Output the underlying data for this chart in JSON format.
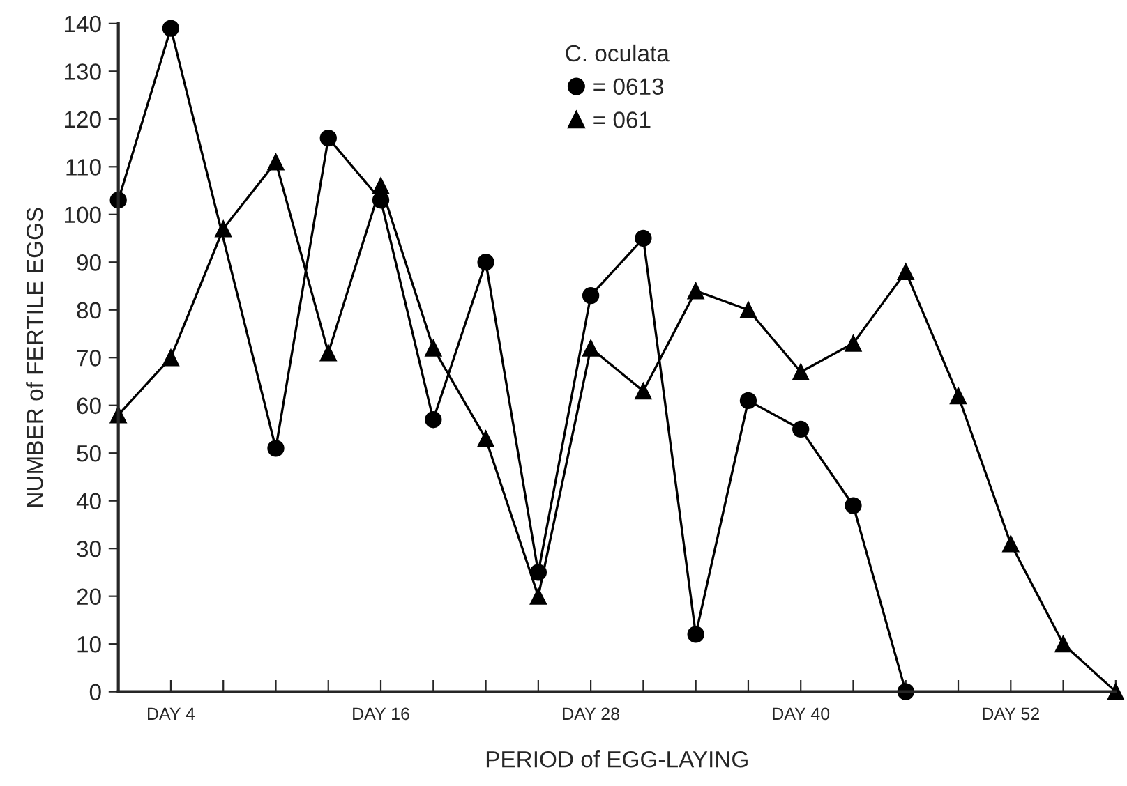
{
  "chart_data": {
    "type": "line",
    "xlabel": "PERIOD of EGG-LAYING",
    "ylabel": "NUMBER of FERTILE EGGS",
    "legend_title": "C. oculata",
    "legend": "top",
    "line_style": "solid",
    "categories": [
      null,
      "DAY 4",
      null,
      null,
      null,
      "DAY 16",
      null,
      null,
      null,
      "DAY 28",
      null,
      null,
      null,
      "DAY 40",
      null,
      null,
      null,
      "DAY 52",
      null,
      null
    ],
    "ylim": [
      0,
      140
    ],
    "yticks": [
      0,
      10,
      20,
      30,
      40,
      50,
      60,
      70,
      80,
      90,
      100,
      110,
      120,
      130,
      140
    ],
    "series": [
      {
        "name": "= 0613",
        "color": "#000000",
        "marker": "circle",
        "values": [
          103,
          139,
          null,
          51,
          116,
          103,
          57,
          90,
          25,
          83,
          95,
          12,
          61,
          55,
          39,
          0,
          null,
          null,
          null,
          null
        ]
      },
      {
        "name": "= 061",
        "color": "#000000",
        "marker": "triangle",
        "values": [
          58,
          70,
          97,
          111,
          71,
          106,
          72,
          53,
          20,
          72,
          63,
          84,
          80,
          67,
          73,
          88,
          62,
          31,
          10,
          0
        ]
      }
    ]
  }
}
